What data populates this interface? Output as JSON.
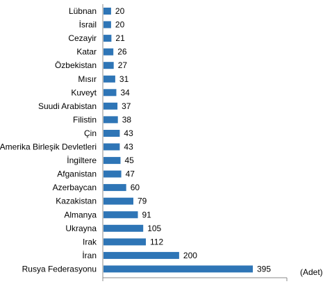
{
  "chart_data": {
    "type": "bar",
    "orientation": "horizontal",
    "categories": [
      "Lübnan",
      "İsrail",
      "Cezayir",
      "Katar",
      "Özbekistan",
      "Mısır",
      "Kuveyt",
      "Suudi Arabistan",
      "Filistin",
      "Çin",
      "Amerika Birleşik Devletleri",
      "İngiltere",
      "Afganistan",
      "Azerbaycan",
      "Kazakistan",
      "Almanya",
      "Ukrayna",
      "Irak",
      "İran",
      "Rusya Federasyonu"
    ],
    "values": [
      20,
      20,
      21,
      26,
      27,
      31,
      34,
      37,
      38,
      43,
      43,
      45,
      47,
      60,
      79,
      91,
      105,
      112,
      200,
      395
    ],
    "unit_label": "(Adet)",
    "xlim": [
      0,
      480
    ],
    "grid": false,
    "legend": "none",
    "bar_color": "#2E75B6"
  }
}
